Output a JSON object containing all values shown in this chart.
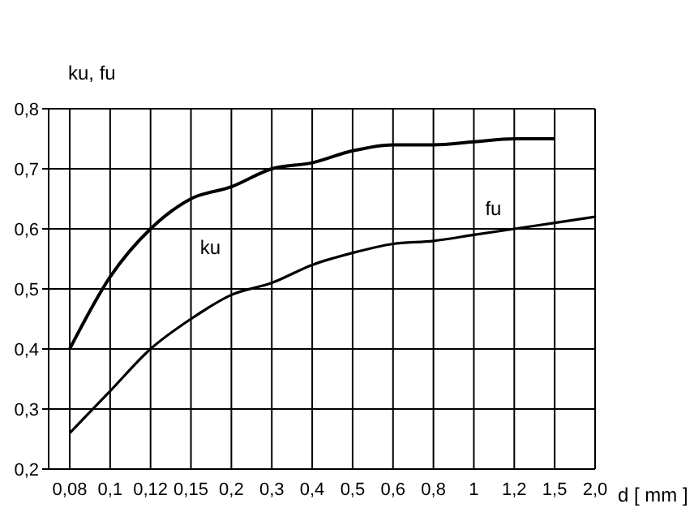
{
  "chart_data": {
    "type": "line",
    "xlabel": "d [ mm ]",
    "ylabel": "ku, fu",
    "categories": [
      "0,08",
      "0,1",
      "0,12",
      "0,15",
      "0,2",
      "0,3",
      "0,4",
      "0,5",
      "0,6",
      "0,8",
      "1",
      "1,2",
      "1,5",
      "2,0"
    ],
    "series": [
      {
        "name": "ku",
        "color": "#000000",
        "values": [
          0.4,
          0.52,
          0.6,
          0.65,
          0.67,
          0.7,
          0.71,
          0.73,
          0.74,
          0.74,
          0.745,
          0.75,
          0.75,
          null
        ]
      },
      {
        "name": "fu",
        "color": "#000000",
        "values": [
          0.26,
          0.33,
          0.4,
          0.45,
          0.49,
          0.51,
          0.54,
          0.56,
          0.575,
          0.58,
          0.59,
          0.6,
          0.61,
          0.62
        ]
      }
    ],
    "ylim": [
      0.2,
      0.8
    ],
    "yticks": [
      {
        "value": 0.2,
        "label": "0,2"
      },
      {
        "value": 0.3,
        "label": "0,3"
      },
      {
        "value": 0.4,
        "label": "0,4"
      },
      {
        "value": 0.5,
        "label": "0,5"
      },
      {
        "value": 0.6,
        "label": "0,6"
      },
      {
        "value": 0.7,
        "label": "0,7"
      },
      {
        "value": 0.8,
        "label": "0,8"
      }
    ],
    "grid": true,
    "legend": false,
    "marker": "none",
    "line_style": "solid"
  }
}
